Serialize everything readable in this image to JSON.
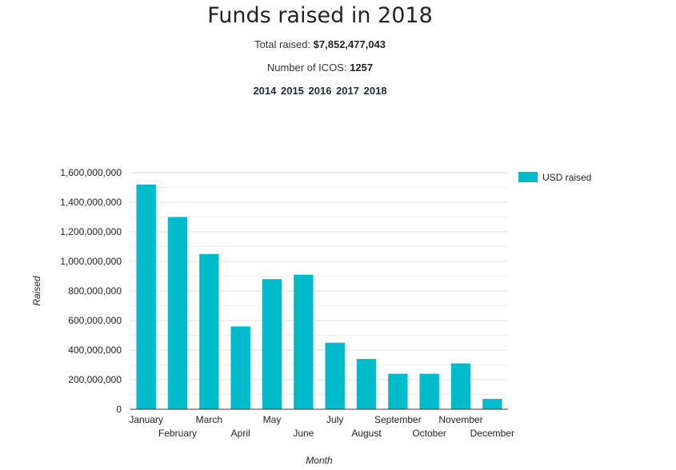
{
  "header": {
    "title": "Funds raised in 2018",
    "total_label": "Total raised:",
    "total_value": "$7,852,477,043",
    "count_label": "Number of ICOS:",
    "count_value": "1257"
  },
  "year_links": [
    "2014",
    "2015",
    "2016",
    "2017",
    "2018"
  ],
  "colors": {
    "bar": "#00bcca",
    "grid": "#e0e0e0",
    "axis": "#333333"
  },
  "chart_data": {
    "type": "bar",
    "title": "Funds raised in 2018",
    "xlabel": "Month",
    "ylabel": "Raised",
    "categories": [
      "January",
      "February",
      "March",
      "April",
      "May",
      "June",
      "July",
      "August",
      "September",
      "October",
      "November",
      "December"
    ],
    "series": [
      {
        "name": "USD raised",
        "values": [
          1520000000,
          1300000000,
          1050000000,
          560000000,
          880000000,
          910000000,
          450000000,
          340000000,
          240000000,
          240000000,
          310000000,
          70000000
        ]
      }
    ],
    "ylim": [
      0,
      1600000000
    ],
    "yticks": [
      "0",
      "200,000,000",
      "400,000,000",
      "600,000,000",
      "800,000,000",
      "1,000,000,000",
      "1,200,000,000",
      "1,400,000,000",
      "1,600,000,000"
    ],
    "grid": true,
    "legend_position": "right"
  }
}
